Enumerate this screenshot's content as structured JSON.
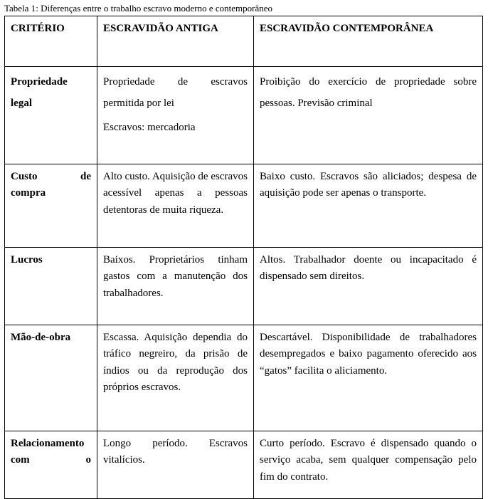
{
  "caption": "Tabela 1: Diferenças entre o trabalho escravo moderno e contemporâneo",
  "headers": {
    "criterio": "CRITÉRIO",
    "antiga": "ESCRAVIDÃO ANTIGA",
    "contemporanea": "ESCRAVIDÃO CONTEMPORÂNEA"
  },
  "rows": {
    "propriedade": {
      "criterio_l1": "Propriedade",
      "criterio_l2": "legal",
      "antiga_p1": "Propriedade de escravos permitida por lei",
      "antiga_p2": "Escravos: mercadoria",
      "contemporanea": "Proibição do exercício de propriedade sobre pessoas. Previsão criminal"
    },
    "custo": {
      "criterio_l1a": "Custo",
      "criterio_l1b": "de",
      "criterio_l2": "compra",
      "antiga": "Alto custo. Aquisição de escravos acessível apenas a pessoas detentoras de muita riqueza.",
      "contemporanea": "Baixo custo. Escravos são aliciados; despesa de aquisição pode ser apenas o transporte."
    },
    "lucros": {
      "criterio": "Lucros",
      "antiga": "Baixos. Proprietários tinham gastos com a manutenção dos trabalhadores.",
      "contemporanea": "Altos. Trabalhador doente ou incapacitado é dispensado sem direitos."
    },
    "mao": {
      "criterio": "Mão-de-obra",
      "antiga": "Escassa. Aquisição dependia do tráfico negreiro, da prisão de índios ou da reprodução dos próprios escravos.",
      "contemporanea": "Descartável. Disponibilidade de trabalhadores desempregados e baixo pagamento oferecido aos “gatos” facilita o aliciamento."
    },
    "rel": {
      "criterio_l1": "Relacionamento",
      "criterio_l2a": "com",
      "criterio_l2b": "o",
      "antiga": "Longo período. Escravos vitalícios.",
      "contemporanea": "Curto período. Escravo é dispensado quando o serviço acaba, sem qualquer compensação pelo fim do contrato."
    }
  }
}
